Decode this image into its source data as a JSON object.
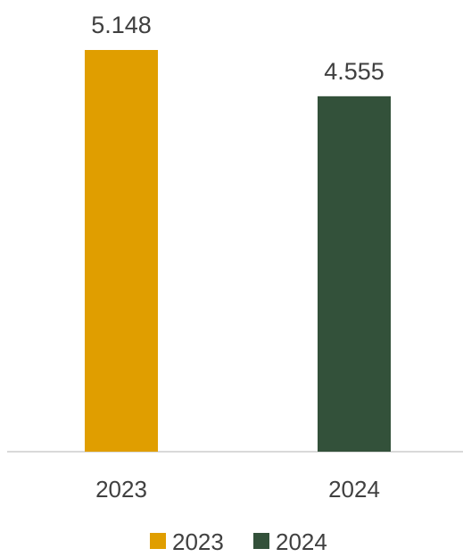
{
  "chart_data": {
    "type": "bar",
    "categories": [
      "2023",
      "2024"
    ],
    "values": [
      5.148,
      4.555
    ],
    "value_labels": [
      "5.148",
      "4.555"
    ],
    "colors": [
      "#E09E00",
      "#33513A"
    ],
    "axis_color": "#D9D9D9",
    "ylim": [
      0,
      5.148
    ],
    "grid": false,
    "legend": {
      "position": "bottom",
      "entries": [
        {
          "label": "2023",
          "color": "#E09E00"
        },
        {
          "label": "2024",
          "color": "#33513A"
        }
      ]
    }
  }
}
